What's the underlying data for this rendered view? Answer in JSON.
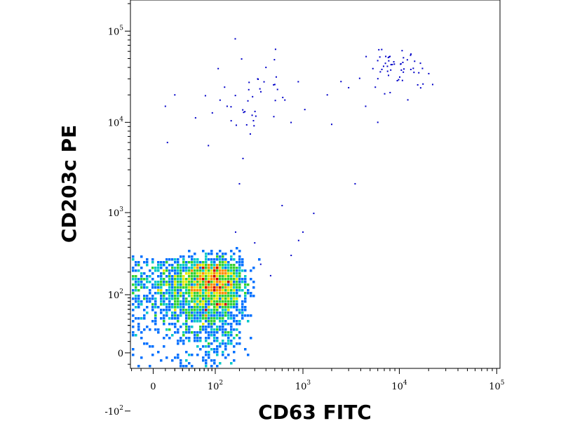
{
  "chart_data": {
    "type": "scatter",
    "xlabel": "CD63 FITC",
    "ylabel": "CD203c PE",
    "x_scale": "biexponential",
    "y_scale": "biexponential",
    "xlim": [
      -100,
      200000
    ],
    "ylim": [
      -400,
      200000
    ],
    "x_ticks": [
      {
        "value": 0,
        "base": "0",
        "exp": ""
      },
      {
        "value": 100,
        "base": "10",
        "exp": "2"
      },
      {
        "value": 1000,
        "base": "10",
        "exp": "3"
      },
      {
        "value": 10000,
        "base": "10",
        "exp": "4"
      },
      {
        "value": 100000,
        "base": "10",
        "exp": "5"
      }
    ],
    "y_ticks": [
      {
        "value": -100,
        "base": "-10",
        "exp": "2"
      },
      {
        "value": 0,
        "base": "0",
        "exp": ""
      },
      {
        "value": 100,
        "base": "10",
        "exp": "2"
      },
      {
        "value": 1000,
        "base": "10",
        "exp": "3"
      },
      {
        "value": 10000,
        "base": "10",
        "exp": "4"
      },
      {
        "value": 100000,
        "base": "10",
        "exp": "5"
      }
    ],
    "grid": false,
    "density_colors": [
      "#0000c8",
      "#0070ff",
      "#00c8c8",
      "#32d232",
      "#e6e600",
      "#ff8c00",
      "#d20000"
    ],
    "populations": [
      {
        "label": "",
        "x_center": 60,
        "y_center": 110,
        "x_spread": 75,
        "y_spread": 85,
        "count": 3200,
        "dense": true
      },
      {
        "label": "",
        "x_center": 280,
        "y_center": 18000,
        "x_spread": 0.22,
        "y_spread": 0.22,
        "count": 45,
        "dense": false
      },
      {
        "label": "",
        "x_center": 9500,
        "y_center": 38000,
        "x_spread": 0.14,
        "y_spread": 0.12,
        "count": 55,
        "dense": false
      }
    ],
    "scattered_points": [
      {
        "x": 10,
        "y": 15000
      },
      {
        "x": 20,
        "y": 20000
      },
      {
        "x": 12,
        "y": 6000
      },
      {
        "x": 220,
        "y": 4000
      },
      {
        "x": 200,
        "y": 2100
      },
      {
        "x": 600,
        "y": 1200
      },
      {
        "x": 1300,
        "y": 980
      },
      {
        "x": 1000,
        "y": 600
      },
      {
        "x": 900,
        "y": 480
      },
      {
        "x": 750,
        "y": 320
      },
      {
        "x": 1800,
        "y": 20000
      },
      {
        "x": 2500,
        "y": 28000
      },
      {
        "x": 2000,
        "y": 9500
      },
      {
        "x": 3500,
        "y": 2100
      },
      {
        "x": 4500,
        "y": 15000
      },
      {
        "x": 3000,
        "y": 24000
      },
      {
        "x": 6000,
        "y": 10000
      },
      {
        "x": 22000,
        "y": 26000
      },
      {
        "x": 400,
        "y": 40000
      },
      {
        "x": 500,
        "y": 26000
      },
      {
        "x": 180,
        "y": 600
      },
      {
        "x": 300,
        "y": 450
      },
      {
        "x": 450,
        "y": 180
      },
      {
        "x": 350,
        "y": 250
      }
    ]
  }
}
